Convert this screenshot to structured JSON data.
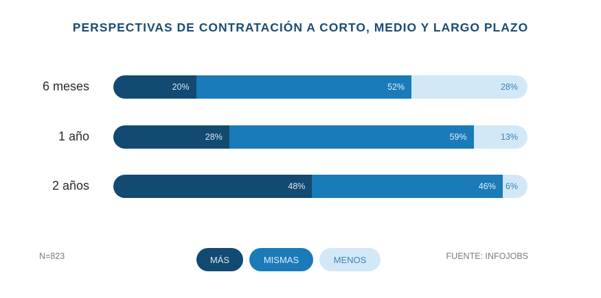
{
  "chart_data": {
    "type": "bar",
    "orientation": "horizontal",
    "stacked": true,
    "title": "PERSPECTIVAS DE CONTRATACIÓN A CORTO, MEDIO Y LARGO PLAZO",
    "categories": [
      "6 meses",
      "1 año",
      "2 años"
    ],
    "series": [
      {
        "name": "MÁS",
        "color": "#124a72",
        "values": [
          20,
          28,
          48
        ],
        "labels": [
          "20%",
          "28%",
          "48%"
        ]
      },
      {
        "name": "MISMAS",
        "color": "#1a7bb8",
        "values": [
          52,
          59,
          46
        ],
        "labels": [
          "52%",
          "59%",
          "46%"
        ]
      },
      {
        "name": "MENOS",
        "color": "#d3e8f7",
        "values": [
          28,
          13,
          6
        ],
        "labels": [
          "28%",
          "13%",
          "6%"
        ]
      }
    ],
    "xlim": [
      0,
      100
    ],
    "unit": "%",
    "grid": false,
    "legend_position": "bottom-center",
    "legend": [
      "MÁS",
      "MISMAS",
      "MENOS"
    ],
    "sample_note": "N=823",
    "source": "FUENTE: INFOJOBS"
  }
}
